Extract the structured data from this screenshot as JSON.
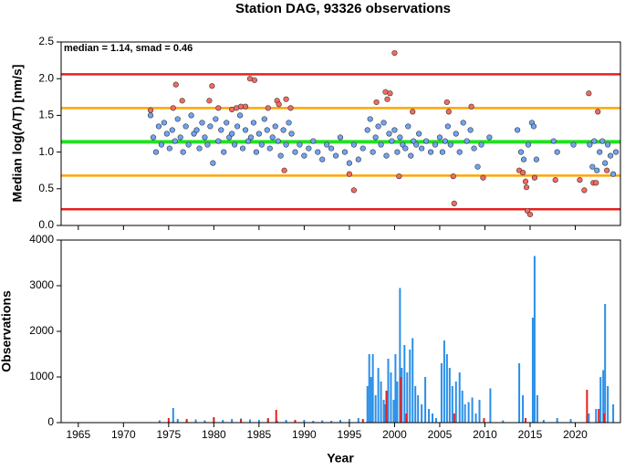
{
  "chart_data": [
    {
      "type": "scatter",
      "title": "Station DAG, 93326 observations",
      "ylabel": "Median log(A/T) [nm/s]",
      "annotation": "median = 1.14, smad = 0.46",
      "xlim": [
        1963.1,
        2025
      ],
      "xticks": [
        1965,
        1970,
        1975,
        1980,
        1985,
        1990,
        1995,
        2000,
        2005,
        2010,
        2015,
        2020
      ],
      "ylim": [
        0,
        2.5
      ],
      "yticks": [
        {
          "value": 0,
          "label": "0.0"
        },
        0.5,
        {
          "value": 1,
          "label": "1.0"
        },
        1.5,
        {
          "value": 2,
          "label": "2.0"
        },
        2.5
      ],
      "hlines": [
        {
          "value": 2.06,
          "color": "#e8201e"
        },
        {
          "value": 1.6,
          "color": "#ffa500"
        },
        {
          "value": 1.14,
          "color": "#22e022"
        },
        {
          "value": 0.68,
          "color": "#ffa500"
        },
        {
          "value": 0.22,
          "color": "#e8201e"
        }
      ],
      "series": [
        {
          "color": "#6fa3f5",
          "x": [
            1973.0,
            1973.3,
            1973.6,
            1973.9,
            1974.2,
            1974.5,
            1974.8,
            1975.1,
            1975.4,
            1975.7,
            1976.0,
            1976.3,
            1976.6,
            1976.9,
            1977.2,
            1977.5,
            1977.8,
            1978.1,
            1978.4,
            1978.7,
            1979.0,
            1979.3,
            1979.6,
            1979.9,
            1980.2,
            1980.5,
            1980.8,
            1981.1,
            1981.4,
            1981.7,
            1982.0,
            1982.3,
            1982.6,
            1982.9,
            1983.2,
            1983.5,
            1983.8,
            1984.1,
            1984.4,
            1984.7,
            1985.0,
            1985.3,
            1985.6,
            1985.9,
            1986.2,
            1986.5,
            1986.8,
            1987.1,
            1987.4,
            1987.7,
            1988.0,
            1988.3,
            1988.6,
            1989.0,
            1989.5,
            1990.0,
            1990.5,
            1991.0,
            1991.5,
            1992.0,
            1992.5,
            1993.0,
            1993.5,
            1994.0,
            1994.5,
            1995.0,
            1995.5,
            1996.0,
            1996.5,
            1997.0,
            1997.3,
            1997.6,
            1997.9,
            1998.2,
            1998.5,
            1998.8,
            1999.1,
            1999.4,
            1999.7,
            2000.0,
            2000.3,
            2000.6,
            2000.9,
            2001.2,
            2001.5,
            2001.8,
            2002.1,
            2002.4,
            2002.7,
            2003.0,
            2003.5,
            2004.0,
            2004.5,
            2005.0,
            2005.3,
            2005.6,
            2005.9,
            2006.2,
            2006.8,
            2007.2,
            2007.6,
            2008.0,
            2008.4,
            2008.8,
            2009.2,
            2009.6,
            2010.5,
            2013.6,
            2014.0,
            2014.3,
            2014.8,
            2015.2,
            2015.4,
            2015.7,
            2017.6,
            2018.0,
            2019.8,
            2021.6,
            2021.9,
            2022.1,
            2022.4,
            2022.7,
            2023.0,
            2023.3,
            2023.6,
            2023.9,
            2024.2,
            2024.5
          ],
          "values": [
            1.5,
            1.2,
            1.0,
            1.35,
            1.1,
            1.4,
            1.25,
            1.05,
            1.3,
            1.15,
            1.45,
            1.2,
            1.0,
            1.35,
            1.1,
            1.5,
            1.25,
            1.3,
            1.05,
            1.4,
            1.2,
            1.1,
            1.35,
            0.85,
            1.45,
            1.15,
            1.3,
            1.0,
            1.4,
            1.2,
            1.25,
            1.1,
            1.35,
            1.5,
            1.05,
            1.3,
            1.15,
            1.2,
            1.4,
            1.0,
            1.25,
            1.1,
            1.45,
            1.3,
            1.05,
            1.2,
            1.35,
            1.15,
            0.95,
            1.3,
            1.1,
            1.4,
            1.25,
            1.0,
            1.1,
            0.95,
            1.05,
            1.15,
            1.0,
            0.9,
            1.1,
            1.05,
            0.95,
            1.2,
            1.0,
            0.85,
            1.1,
            0.9,
            1.05,
            1.3,
            1.45,
            1.0,
            1.2,
            1.35,
            1.1,
            1.4,
            0.95,
            1.25,
            1.15,
            1.3,
            1.0,
            1.2,
            1.1,
            1.05,
            1.35,
            0.95,
            1.15,
            1.1,
            1.25,
            1.05,
            1.15,
            1.0,
            1.1,
            1.2,
            1.0,
            1.15,
            1.35,
            1.1,
            1.25,
            1.0,
            1.4,
            1.15,
            1.3,
            1.05,
            0.8,
            1.1,
            1.2,
            1.3,
            1.0,
            0.9,
            1.1,
            1.4,
            1.35,
            0.9,
            1.15,
            1.0,
            1.1,
            1.1,
            0.8,
            1.15,
            0.75,
            1.0,
            1.15,
            0.85,
            1.1,
            0.95,
            0.7,
            1.0
          ]
        },
        {
          "color": "#f46a5e",
          "x": [
            1973,
            1975.5,
            1975.8,
            1976.5,
            1979.5,
            1979.8,
            1980.5,
            1982,
            1982.5,
            1983,
            1983.5,
            1984,
            1984.5,
            1986,
            1987,
            1987.2,
            1987.8,
            1988,
            1988.5,
            1995,
            1995.5,
            1998,
            1999,
            1999.2,
            1999.5,
            2000,
            2000.5,
            2002,
            2005.8,
            2006,
            2006.5,
            2006.6,
            2008.5,
            2009.8,
            2013.8,
            2014.2,
            2014.5,
            2014.6,
            2014.7,
            2015,
            2015.5,
            2017.8,
            2020.5,
            2021,
            2021.5,
            2022,
            2022.3,
            2022.5,
            2023.5
          ],
          "values": [
            1.57,
            1.6,
            1.92,
            1.7,
            1.7,
            1.9,
            1.6,
            1.58,
            1.6,
            1.62,
            1.62,
            2.0,
            1.98,
            1.6,
            1.7,
            1.65,
            0.75,
            1.72,
            1.6,
            0.7,
            0.48,
            1.68,
            1.82,
            1.72,
            1.8,
            2.35,
            0.67,
            1.55,
            1.68,
            1.55,
            0.67,
            0.3,
            1.62,
            0.65,
            0.75,
            0.72,
            0.6,
            0.52,
            0.2,
            0.15,
            0.65,
            0.62,
            0.62,
            0.48,
            1.8,
            0.58,
            0.58,
            1.55,
            0.75
          ]
        }
      ]
    },
    {
      "type": "bar",
      "ylabel": "Observations",
      "xlabel": "Year",
      "xlim": [
        1963.1,
        2025
      ],
      "xticks": [
        {
          "value": 1965,
          "label": "1965"
        },
        1970,
        1975,
        1980,
        1985,
        1990,
        1995,
        2000,
        2005,
        2010,
        2015,
        2020
      ],
      "ylim": [
        0,
        4000
      ],
      "yticks": [
        0,
        1000,
        2000,
        3000,
        4000
      ],
      "series": [
        {
          "color": "#2a8fe8",
          "x": [
            1974,
            1975.5,
            1976,
            1977,
            1978,
            1979,
            1980,
            1981,
            1982,
            1983,
            1984,
            1985,
            1986,
            1987,
            1988,
            1989,
            1990,
            1991,
            1992,
            1993,
            1994,
            1995,
            1996,
            1997.0,
            1997.2,
            1997.4,
            1997.6,
            1997.9,
            1998.2,
            1998.5,
            1998.8,
            1999.0,
            1999.3,
            1999.6,
            1999.9,
            2000.1,
            2000.3,
            2000.6,
            2000.8,
            2001.1,
            2001.4,
            2001.7,
            2002.0,
            2002.3,
            2002.6,
            2003.0,
            2003.4,
            2003.8,
            2004.2,
            2004.6,
            2005.2,
            2005.5,
            2005.8,
            2006.1,
            2006.4,
            2006.8,
            2007.2,
            2007.5,
            2007.8,
            2008.2,
            2008.6,
            2009.0,
            2009.4,
            2010.6,
            2012,
            2013.8,
            2014.2,
            2015.3,
            2015.5,
            2015.8,
            2016.5,
            2018,
            2019.5,
            2021.5,
            2022.3,
            2022.8,
            2023.1,
            2023.3,
            2023.6,
            2024.2
          ],
          "values": [
            50,
            320,
            80,
            60,
            70,
            50,
            100,
            60,
            80,
            90,
            70,
            60,
            80,
            50,
            60,
            50,
            60,
            40,
            50,
            40,
            60,
            80,
            100,
            800,
            1500,
            1000,
            1500,
            600,
            1200,
            900,
            500,
            400,
            1400,
            1100,
            500,
            1500,
            900,
            2950,
            1200,
            1700,
            1100,
            1600,
            1850,
            800,
            600,
            400,
            1000,
            300,
            200,
            100,
            1300,
            1800,
            1500,
            1200,
            800,
            900,
            1100,
            700,
            400,
            450,
            550,
            200,
            500,
            750,
            50,
            1300,
            600,
            2300,
            3650,
            600,
            60,
            100,
            80,
            200,
            300,
            1000,
            1150,
            2600,
            800,
            400
          ]
        },
        {
          "color": "#e8201e",
          "x": [
            1975,
            1977,
            1980,
            1983,
            1986,
            1986.9,
            1989,
            1996.5,
            1999.1,
            2000.7,
            2001.3,
            2006.6,
            2009.9,
            2014.5,
            2021.3,
            2022.6,
            2023.2
          ],
          "values": [
            100,
            80,
            120,
            80,
            100,
            280,
            60,
            80,
            700,
            1000,
            200,
            200,
            100,
            100,
            720,
            300,
            200
          ]
        }
      ]
    }
  ]
}
